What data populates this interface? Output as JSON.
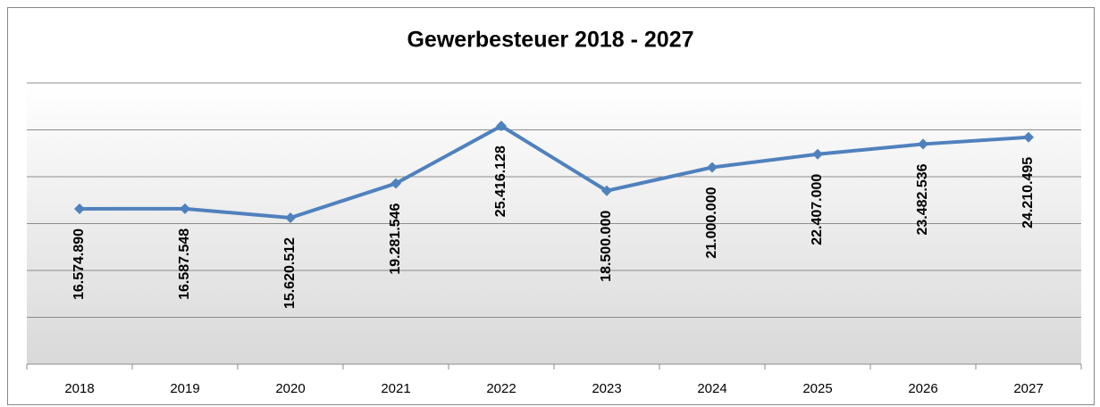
{
  "chart_data": {
    "type": "line",
    "title": "Gewerbesteuer 2018 - 2027",
    "categories": [
      "2018",
      "2019",
      "2020",
      "2021",
      "2022",
      "2023",
      "2024",
      "2025",
      "2026",
      "2027"
    ],
    "series": [
      {
        "name": "Gewerbesteuer",
        "color": "#4f81bd",
        "values": [
          16574890,
          16587548,
          15620512,
          19281546,
          25416128,
          18500000,
          21000000,
          22407000,
          23482536,
          24210495
        ],
        "value_labels": [
          "16.574.890",
          "16.587.548",
          "15.620.512",
          "19.281.546",
          "25.416.128",
          "18.500.000",
          "21.000.000",
          "22.407.000",
          "23.482.536",
          "24.210.495"
        ]
      }
    ],
    "ylim": [
      0,
      30000000
    ],
    "yticks": [
      0,
      5000000,
      10000000,
      15000000,
      20000000,
      25000000,
      30000000
    ],
    "grid": true
  }
}
